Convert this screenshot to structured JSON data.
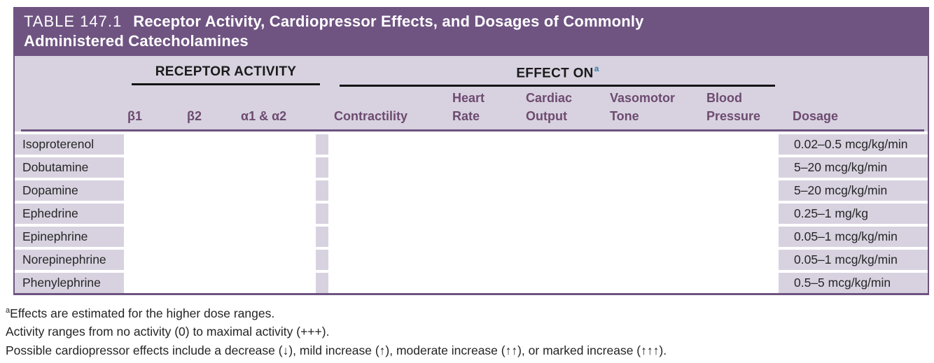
{
  "table": {
    "id": "TABLE 147.1",
    "title": "Receptor Activity, Cardiopressor Effects, and Dosages of Commonly Administered Catecholamines",
    "groups": {
      "receptor": "RECEPTOR ACTIVITY",
      "effect": "EFFECT ON",
      "effect_superscript": "a"
    },
    "columns": {
      "beta1": "β1",
      "beta2": "β2",
      "alpha": "α1 & α2",
      "contractility": "Contractility",
      "heart_line1": "Heart",
      "heart_line2": "Rate",
      "cardiac_line1": "Cardiac",
      "cardiac_line2": "Output",
      "vasomotor_line1": "Vasomotor",
      "vasomotor_line2": "Tone",
      "blood_line1": "Blood",
      "blood_line2": "Pressure",
      "dosage": "Dosage"
    },
    "rows": [
      {
        "drug": "Isoproterenol",
        "dosage": "0.02–0.5 mcg/kg/min"
      },
      {
        "drug": "Dobutamine",
        "dosage": "5–20 mcg/kg/min"
      },
      {
        "drug": "Dopamine",
        "dosage": "5–20 mcg/kg/min"
      },
      {
        "drug": "Ephedrine",
        "dosage": "0.25–1 mg/kg"
      },
      {
        "drug": "Epinephrine",
        "dosage": "0.05–1 mcg/kg/min"
      },
      {
        "drug": "Norepinephrine",
        "dosage": "0.05–1 mcg/kg/min"
      },
      {
        "drug": "Phenylephrine",
        "dosage": "0.5–5 mcg/kg/min"
      }
    ],
    "footnotes": {
      "marker": "a",
      "line1": "Effects are estimated for the higher dose ranges.",
      "line2": "Activity ranges from no activity (0) to maximal activity (+++).",
      "line3": "Possible cardiopressor effects include a decrease (↓), mild increase (↑), moderate increase (↑↑), or marked increase (↑↑↑)."
    },
    "colors": {
      "banner_purple": "#6F5482",
      "border_purple": "#6E5480",
      "row_lavender": "#D8D2E0",
      "header_text_purple": "#6D4B70",
      "footnote_marker_teal": "#2F7FA6"
    }
  }
}
